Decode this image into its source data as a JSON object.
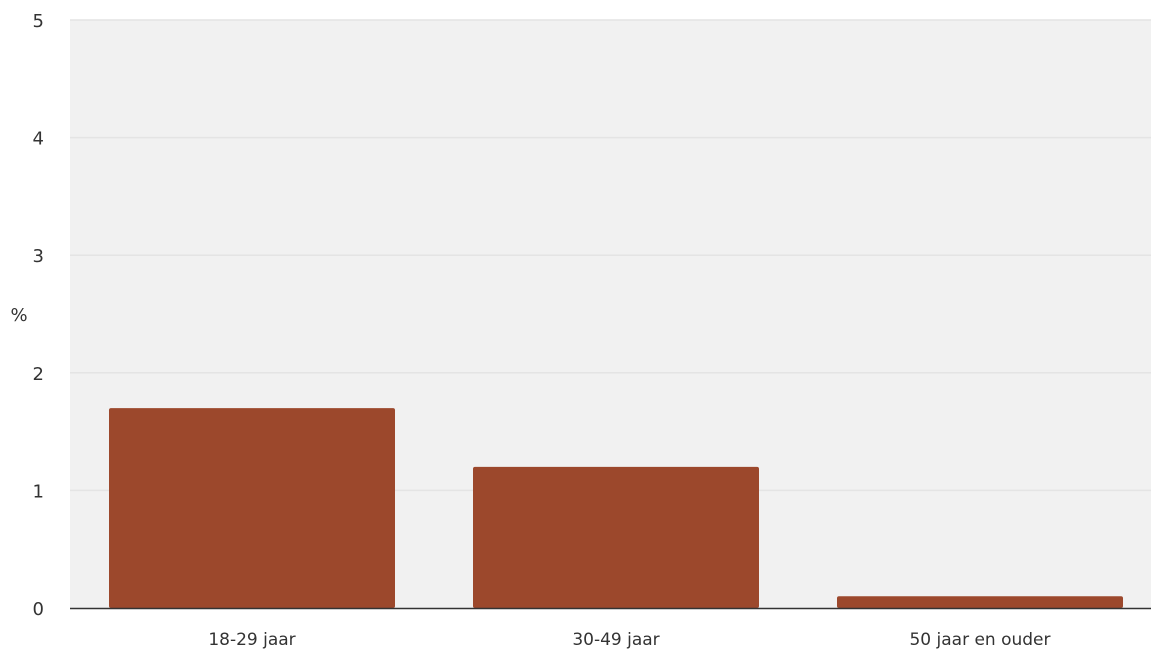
{
  "chart_data": {
    "type": "bar",
    "title": "",
    "xlabel": "",
    "ylabel": "%",
    "categories": [
      "18-29 jaar",
      "30-49 jaar",
      "50 jaar en ouder"
    ],
    "values": [
      1.7,
      1.2,
      0.1
    ],
    "ylim": [
      0,
      5
    ],
    "yticks": [
      "0",
      "1",
      "2",
      "3",
      "4",
      "5"
    ],
    "grid": true,
    "legend": "none",
    "colors": {
      "bar": "#9c482c",
      "plot_background": "#f1f1f1",
      "gridline": "#e4e4e4",
      "axis": "#333333"
    }
  }
}
